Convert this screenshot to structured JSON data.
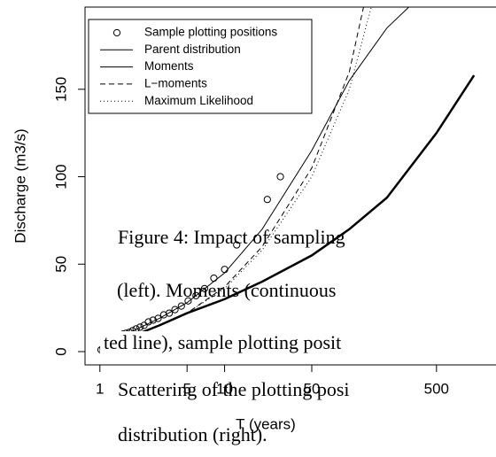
{
  "chart_data": {
    "type": "line",
    "xlabel": "T (years)",
    "ylabel": "Discharge (m3/s)",
    "xscale": "log",
    "xlim": [
      0.76,
      1500
    ],
    "ylim": [
      -7.6,
      197
    ],
    "xticks": [
      1,
      5,
      10,
      50,
      500
    ],
    "yticks": [
      0,
      50,
      100,
      150
    ],
    "legend": "top-left",
    "series": [
      {
        "name": "Sample plotting positions",
        "marker": "circle",
        "color": "#000000",
        "x": [
          1.02,
          1.06,
          1.1,
          1.15,
          1.2,
          1.26,
          1.32,
          1.38,
          1.45,
          1.53,
          1.62,
          1.72,
          1.83,
          1.95,
          2.1,
          2.26,
          2.45,
          2.67,
          2.93,
          3.25,
          3.6,
          4.0,
          4.5,
          5.1,
          5.9,
          6.9,
          8.2,
          10,
          12.5,
          22,
          28
        ],
        "values": [
          1,
          2,
          3,
          4,
          5,
          6,
          7,
          8,
          9,
          10,
          10.5,
          11,
          12,
          13,
          14,
          15,
          17,
          18,
          19,
          21,
          22,
          24,
          26,
          29,
          32,
          36,
          42,
          47,
          61,
          87,
          100
        ]
      },
      {
        "name": "Parent distribution",
        "line_style": "solid",
        "line_width": 2.5,
        "color": "#000000",
        "x": [
          1,
          1.2,
          1.5,
          2,
          3,
          5,
          10,
          20,
          50,
          100,
          200,
          500,
          1000
        ],
        "values": [
          0,
          4,
          7,
          10,
          15,
          22,
          30,
          40,
          55,
          70,
          88,
          125,
          158
        ]
      },
      {
        "name": "Moments",
        "line_style": "solid",
        "line_width": 1,
        "color": "#000000",
        "x": [
          1,
          1.2,
          1.5,
          2,
          3,
          5,
          10,
          20,
          50,
          100,
          200,
          300
        ],
        "values": [
          0,
          5,
          9,
          13,
          19,
          28,
          45,
          70,
          115,
          155,
          185,
          197
        ]
      },
      {
        "name": "L−moments",
        "line_style": "dashed",
        "line_width": 1,
        "color": "#000000",
        "x": [
          1.2,
          1.5,
          2,
          3,
          5,
          10,
          20,
          50,
          100,
          130
        ],
        "values": [
          3,
          6,
          10,
          15,
          22,
          37,
          60,
          105,
          160,
          197
        ]
      },
      {
        "name": "Maximum Likelihood",
        "line_style": "dotted",
        "line_width": 1,
        "color": "#000000",
        "x": [
          1.2,
          1.5,
          2,
          3,
          5,
          10,
          20,
          50,
          100,
          150
        ],
        "values": [
          3,
          6,
          10,
          15,
          22,
          36,
          58,
          100,
          150,
          197
        ]
      }
    ],
    "annotations": [
      "Figure 4:  Impact of sampling",
      "(left).  Moments (continuous",
      "ted line), sample plotting posit",
      "Scattering of the plotting posi",
      "distribution (right)."
    ]
  }
}
